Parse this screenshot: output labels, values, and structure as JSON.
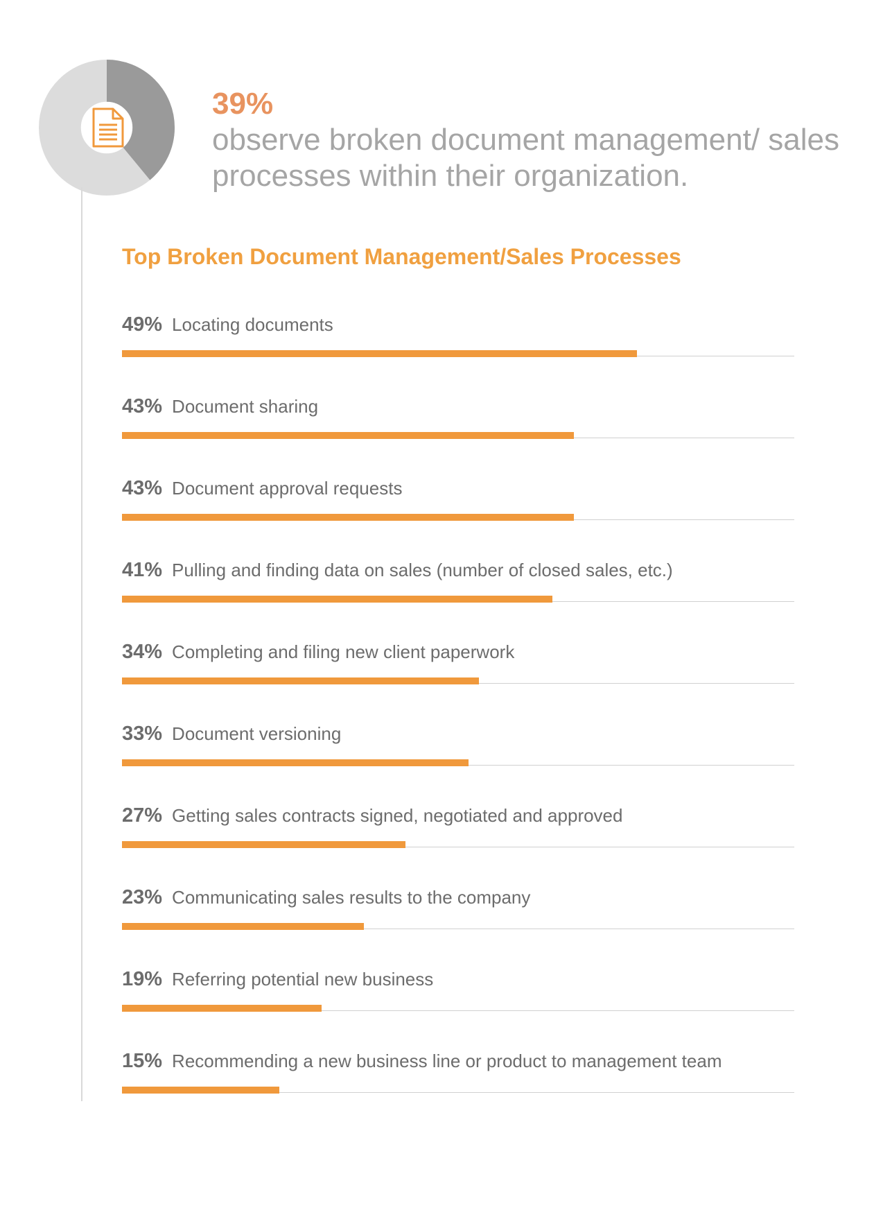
{
  "highlight": {
    "value": 39,
    "value_label": "39%",
    "description": "observe broken document management/ sales processes within their organization.",
    "icon": "document-icon",
    "colors": {
      "filled": "#9a9a9a",
      "remaining": "#dcdcdc",
      "icon": "#f0993c",
      "value_text": "#e8935f",
      "description_text": "#a5a5a5"
    }
  },
  "chart_data": {
    "type": "bar",
    "orientation": "horizontal",
    "title": "Top Broken Document Management/Sales Processes",
    "categories": [
      "Locating documents",
      "Document sharing",
      "Document approval requests",
      "Pulling and finding data on sales (number of closed sales, etc.)",
      "Completing and filing new client paperwork",
      "Document versioning",
      "Getting sales contracts signed, negotiated and approved",
      "Communicating sales results to the company",
      "Referring potential new business",
      "Recommending a new business line or product to management team"
    ],
    "values": [
      49,
      43,
      43,
      41,
      34,
      33,
      27,
      23,
      19,
      15
    ],
    "value_labels": [
      "49%",
      "43%",
      "43%",
      "41%",
      "34%",
      "33%",
      "27%",
      "23%",
      "19%",
      "15%"
    ],
    "xlim": [
      0,
      64
    ],
    "grid": false,
    "colors": {
      "bar": "#f0993c",
      "track": "#d0d0d0",
      "title": "#f0a040",
      "label": "#6c6c6c"
    }
  }
}
